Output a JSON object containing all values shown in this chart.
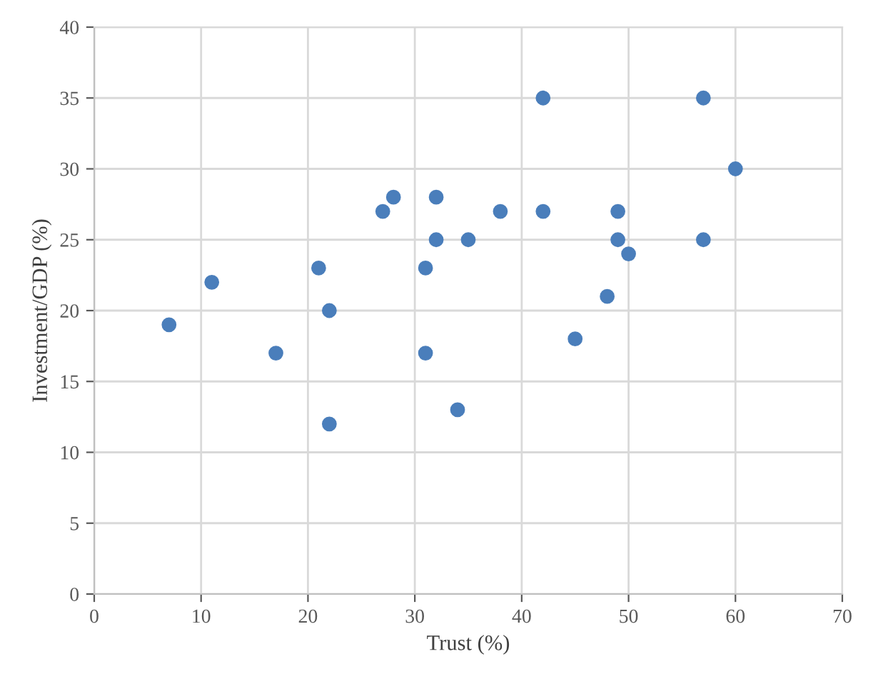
{
  "chart_data": {
    "type": "scatter",
    "xlabel": "Trust (%)",
    "ylabel": "Investment/GDP (%)",
    "x": [
      7,
      11,
      17,
      21,
      22,
      22,
      27,
      28,
      31,
      31,
      32,
      32,
      34,
      35,
      38,
      42,
      42,
      45,
      48,
      49,
      49,
      50,
      57,
      57,
      60
    ],
    "series": [
      {
        "color": "#4a7ebb",
        "values": [
          19,
          22,
          17,
          23,
          20,
          12,
          27,
          28,
          23,
          17,
          28,
          25,
          13,
          25,
          27,
          35,
          27,
          18,
          21,
          27,
          25,
          24,
          35,
          25,
          30
        ]
      }
    ],
    "xlim": [
      0,
      70
    ],
    "xticks": [
      0,
      10,
      20,
      30,
      40,
      50,
      60,
      70
    ],
    "ylim": [
      0,
      40
    ],
    "yticks": [
      0,
      5,
      10,
      15,
      20,
      25,
      30,
      35,
      40
    ],
    "grid": true,
    "marker": "circle",
    "legend": false
  }
}
